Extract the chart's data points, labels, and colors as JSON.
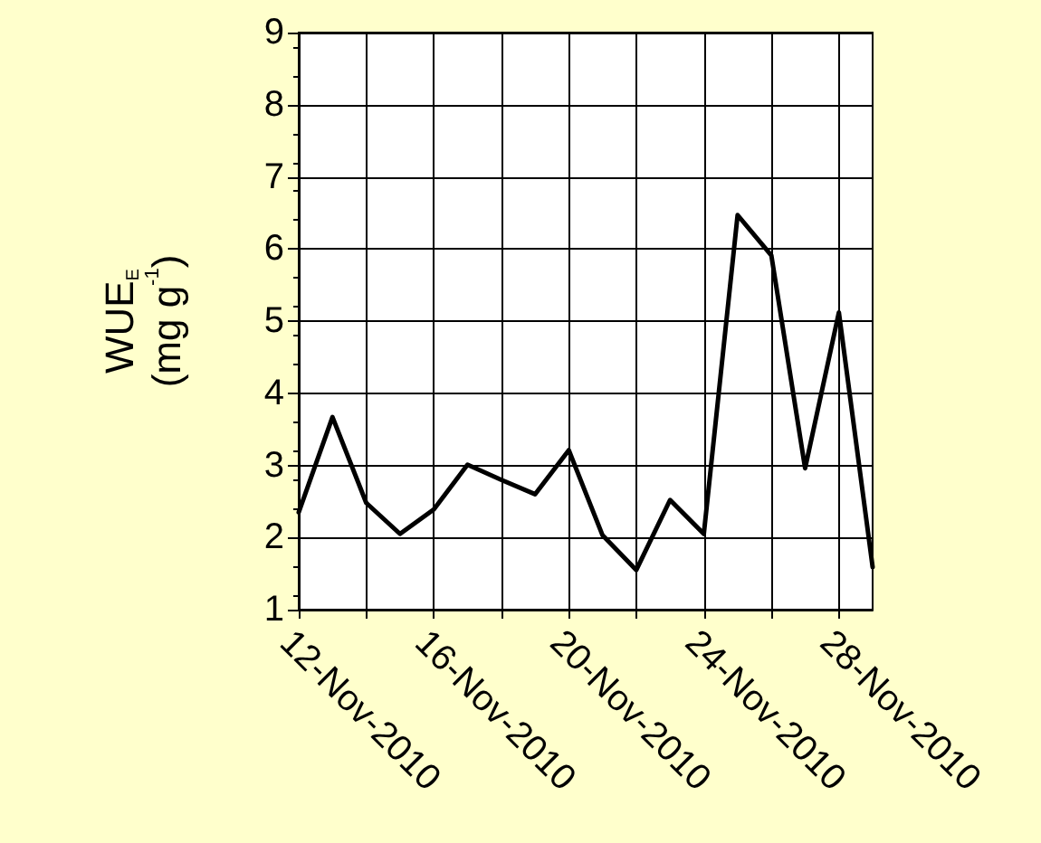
{
  "chart_data": {
    "type": "line",
    "ylabel": "WUE$_{E}$\n(mg g$^{-1}$)",
    "x": [
      "2010-11-12",
      "2010-11-13",
      "2010-11-14",
      "2010-11-15",
      "2010-11-16",
      "2010-11-17",
      "2010-11-18",
      "2010-11-19",
      "2010-11-20",
      "2010-11-21",
      "2010-11-22",
      "2010-11-23",
      "2010-11-24",
      "2010-11-25",
      "2010-11-26",
      "2010-11-27",
      "2010-11-28",
      "2010-11-29"
    ],
    "series": [
      {
        "color": "#000000",
        "values": [
          2.35,
          3.67,
          2.48,
          2.05,
          2.39,
          3.01,
          2.8,
          2.6,
          3.21,
          2.03,
          1.55,
          2.52,
          2.05,
          6.47,
          5.91,
          2.96,
          5.12,
          1.59
        ]
      }
    ],
    "xlim": [
      "2010-11-12",
      "2010-11-29"
    ],
    "xticks": [
      {
        "value": "2010-11-12",
        "label": "12-Nov-2010"
      },
      {
        "value": "2010-11-14",
        "label": null
      },
      {
        "value": "2010-11-16",
        "label": "16-Nov-2010"
      },
      {
        "value": "2010-11-18",
        "label": null
      },
      {
        "value": "2010-11-20",
        "label": "20-Nov-2010"
      },
      {
        "value": "2010-11-22",
        "label": null
      },
      {
        "value": "2010-11-24",
        "label": "24-Nov-2010"
      },
      {
        "value": "2010-11-26",
        "label": null
      },
      {
        "value": "2010-11-28",
        "label": "28-Nov-2010"
      }
    ],
    "ylim": [
      1,
      9
    ],
    "yticks": [
      1,
      2,
      3,
      4,
      5,
      6,
      7,
      8,
      9
    ],
    "grid": true,
    "marker": "none",
    "line_style": "solid"
  }
}
